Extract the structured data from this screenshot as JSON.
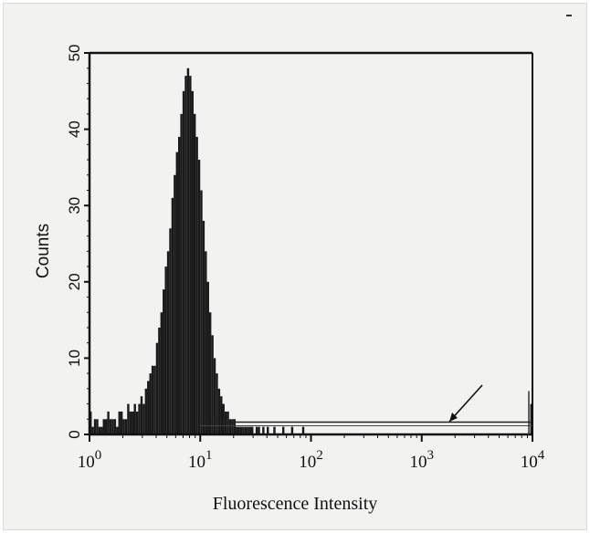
{
  "chart_data": {
    "type": "histogram",
    "xlabel": "Fluorescence Intensity",
    "ylabel": "Counts",
    "x_scale": "log",
    "xlim": [
      1,
      10000
    ],
    "ylim": [
      0,
      50
    ],
    "y_ticks": [
      "0",
      "10",
      "20",
      "30",
      "40",
      "50"
    ],
    "x_ticks": [
      {
        "base": "10",
        "exp": "0"
      },
      {
        "base": "10",
        "exp": "1"
      },
      {
        "base": "10",
        "exp": "2"
      },
      {
        "base": "10",
        "exp": "3"
      },
      {
        "base": "10",
        "exp": "4"
      }
    ],
    "bins_decades_per_bin": 0.02,
    "counts": [
      3,
      1,
      2,
      2,
      1,
      1,
      2,
      2,
      3,
      2,
      2,
      2,
      1,
      3,
      3,
      2,
      2,
      4,
      3,
      3,
      4,
      3,
      4,
      5,
      4,
      6,
      7,
      8,
      9,
      9,
      12,
      14,
      16,
      19,
      22,
      24,
      27,
      31,
      34,
      37,
      39,
      42,
      45,
      47,
      48,
      47,
      45,
      42,
      39,
      36,
      32,
      28,
      24,
      20,
      16,
      13,
      10,
      8,
      6,
      5,
      4,
      3,
      3,
      2,
      2,
      2,
      1,
      1,
      1,
      1,
      1,
      1,
      1,
      1,
      0,
      1,
      1,
      0,
      1,
      0,
      1,
      0,
      0,
      1,
      0,
      0,
      0,
      1,
      0,
      0,
      0,
      1,
      0,
      0,
      0,
      0,
      1,
      0,
      0,
      0,
      0,
      0,
      0,
      0,
      0,
      0,
      0,
      0,
      0,
      0,
      0,
      0,
      0,
      0,
      0,
      0,
      0,
      0,
      0,
      0,
      0,
      0,
      0,
      0,
      0,
      0,
      0,
      0,
      0,
      0,
      0,
      0,
      0,
      0,
      0,
      0,
      0,
      0,
      0,
      0,
      0,
      0,
      0,
      0,
      0,
      0,
      0,
      0,
      0,
      0,
      0,
      0,
      0,
      0,
      0,
      0,
      0,
      0,
      0,
      0,
      0,
      0,
      0,
      0,
      0,
      0,
      0,
      0,
      0,
      0,
      0,
      0,
      0,
      0,
      0,
      0,
      0,
      0,
      0,
      0,
      0,
      0,
      0,
      0,
      0,
      0,
      0,
      0,
      0,
      0,
      0,
      0,
      0,
      0,
      0,
      0,
      0,
      0,
      0,
      4
    ],
    "gate_marker": {
      "from": 10,
      "to": 10000,
      "level": 1.5
    },
    "annotation": "arrow pointing to marker line near 10^3",
    "grid": false,
    "colors": {
      "fill": "#1a1a1a",
      "axis": "#111111",
      "paper": "#f2f2f0"
    }
  }
}
